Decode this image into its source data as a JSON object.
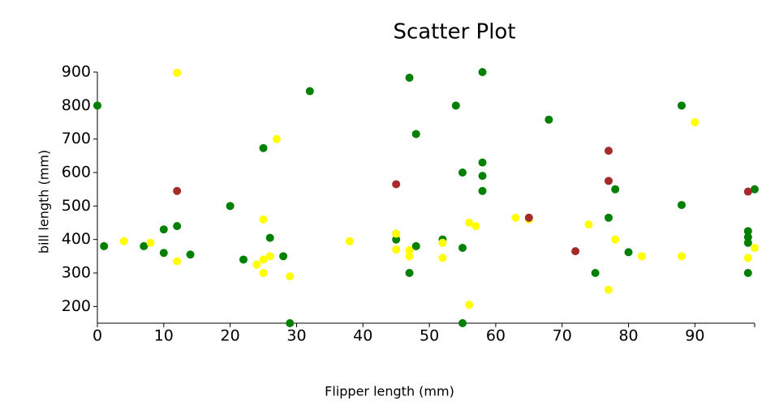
{
  "chart_data": {
    "type": "scatter",
    "title": "Scatter Plot",
    "x_label": "Flipper length (mm)",
    "y_label": "bill length (mm)",
    "xlim": [
      0,
      99
    ],
    "ylim": [
      150,
      900
    ],
    "xticks": [
      0,
      10,
      20,
      30,
      40,
      50,
      60,
      70,
      80,
      90
    ],
    "yticks": [
      200,
      300,
      400,
      500,
      600,
      700,
      800,
      900
    ],
    "series": [
      {
        "color": "#008000",
        "x": [
          0,
          1,
          7,
          10,
          10,
          12,
          14,
          20,
          22,
          25,
          26,
          28,
          29,
          32,
          45,
          45,
          47,
          47,
          48,
          48,
          52,
          54,
          55,
          55,
          55,
          58,
          58,
          58,
          58,
          68,
          75,
          77,
          78,
          80,
          88,
          88,
          98,
          98,
          98,
          98,
          99
        ],
        "values": [
          800,
          380,
          380,
          430,
          360,
          440,
          355,
          500,
          340,
          673,
          405,
          350,
          150,
          843,
          417,
          400,
          883,
          300,
          715,
          380,
          400,
          800,
          600,
          375,
          150,
          900,
          630,
          590,
          545,
          758,
          300,
          465,
          550,
          362,
          800,
          503,
          425,
          407,
          390,
          300,
          550
        ]
      },
      {
        "color": "#ffff00",
        "x": [
          4,
          8,
          12,
          12,
          24,
          25,
          25,
          25,
          26,
          27,
          29,
          38,
          45,
          45,
          47,
          47,
          52,
          52,
          56,
          56,
          57,
          63,
          65,
          74,
          77,
          78,
          82,
          88,
          90,
          98,
          99
        ],
        "values": [
          395,
          390,
          898,
          335,
          325,
          460,
          340,
          300,
          350,
          700,
          290,
          395,
          417,
          370,
          368,
          350,
          390,
          345,
          450,
          205,
          440,
          465,
          460,
          445,
          250,
          400,
          350,
          350,
          750,
          345,
          375
        ]
      },
      {
        "color": "#a52a2a",
        "x": [
          12,
          45,
          65,
          72,
          77,
          77,
          98
        ],
        "values": [
          545,
          565,
          465,
          365,
          665,
          575,
          543
        ]
      }
    ]
  }
}
